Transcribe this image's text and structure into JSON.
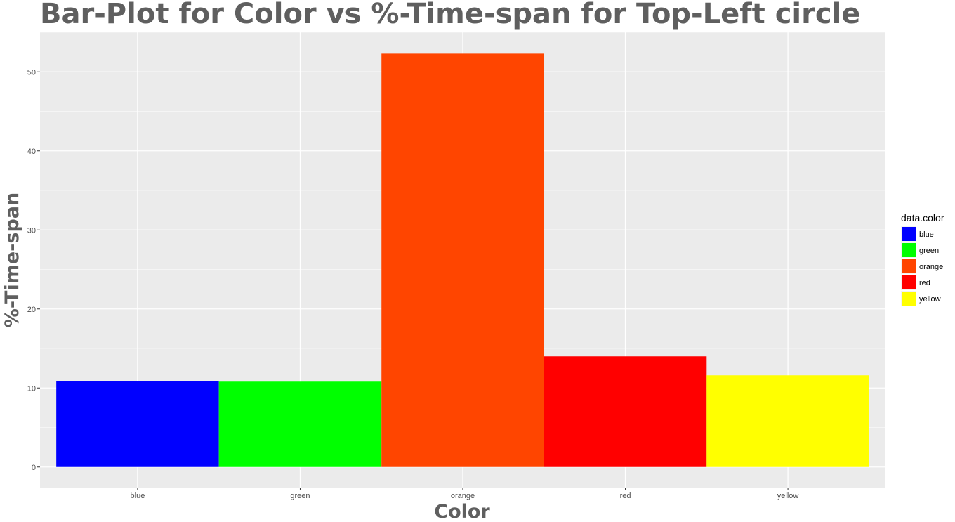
{
  "chart_data": {
    "type": "bar",
    "title": "Bar-Plot for Color vs %-Time-span for Top-Left circle",
    "xlabel": "Color",
    "ylabel": "%-Time-span",
    "categories": [
      "blue",
      "green",
      "orange",
      "red",
      "yellow"
    ],
    "values": [
      10.9,
      10.8,
      52.3,
      14.0,
      11.6
    ],
    "bar_colors": [
      "#0000ff",
      "#00ff00",
      "#ff4500",
      "#ff0000",
      "#ffff00"
    ],
    "ylim": [
      -2.6,
      55.0
    ],
    "yticks": [
      0,
      10,
      20,
      30,
      40,
      50
    ],
    "grid": true,
    "legend": {
      "title": "data.color",
      "position": "right",
      "entries": [
        {
          "label": "blue",
          "color": "#0000ff"
        },
        {
          "label": "green",
          "color": "#00ff00"
        },
        {
          "label": "orange",
          "color": "#ff4500"
        },
        {
          "label": "red",
          "color": "#ff0000"
        },
        {
          "label": "yellow",
          "color": "#ffff00"
        }
      ]
    }
  }
}
